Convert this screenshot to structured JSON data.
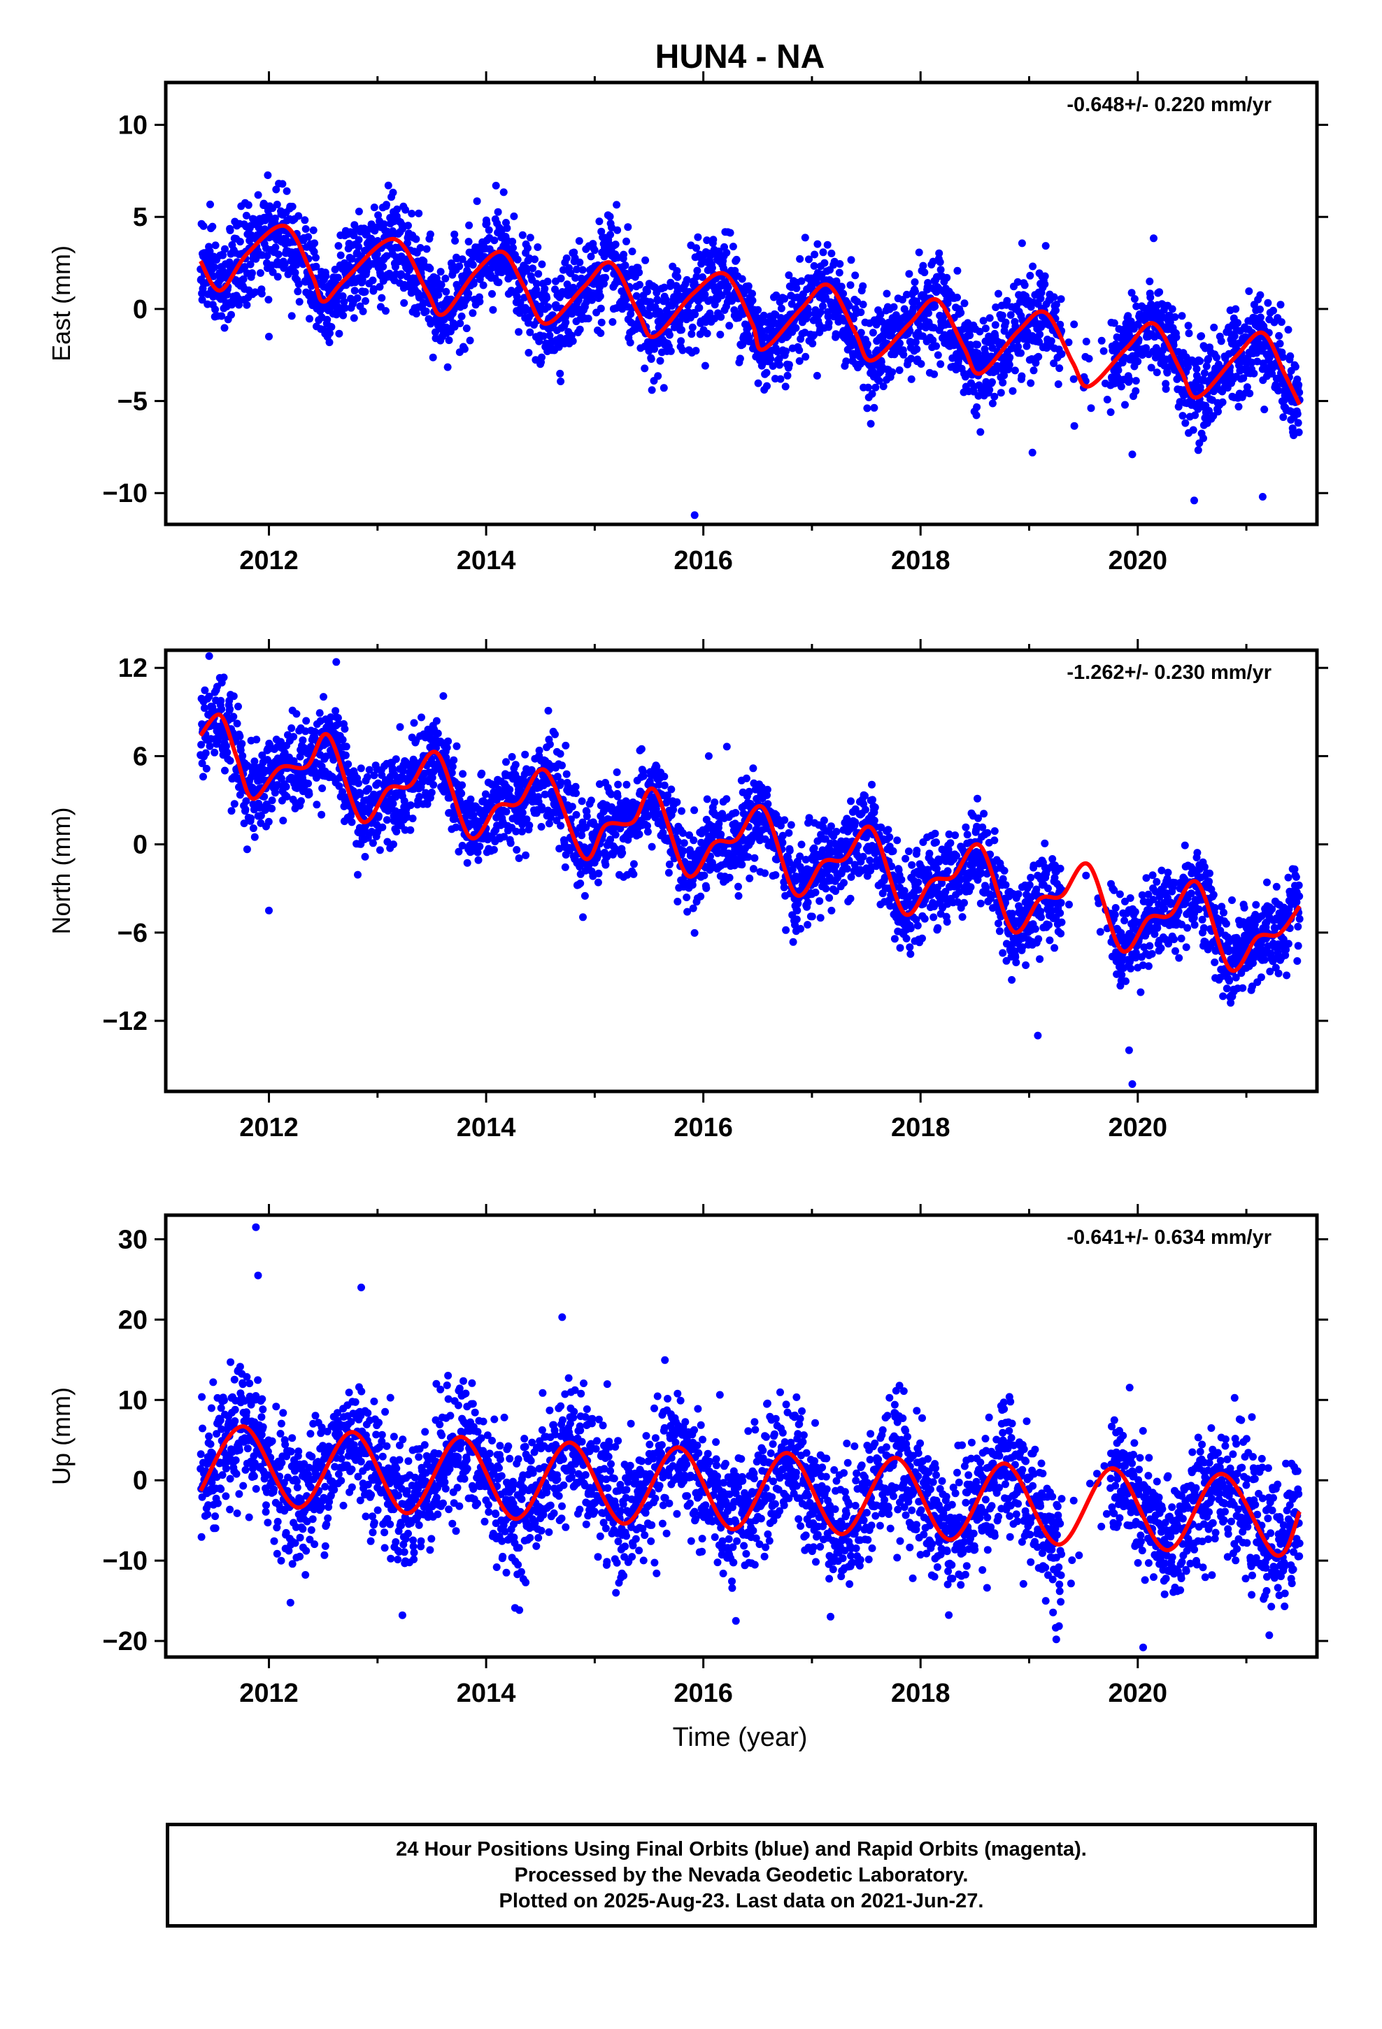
{
  "title": "HUN4 - NA",
  "xlabel": "Time (year)",
  "footer": {
    "line1": "24 Hour Positions Using Final Orbits (blue) and Rapid Orbits (magenta).",
    "line2": "Processed by the Nevada Geodetic Laboratory.",
    "line3": "Plotted on 2025-Aug-23. Last data on 2021-Jun-27."
  },
  "colors": {
    "data_points": "#0000ff",
    "model_fit": "#ff0000",
    "axes": "#000000"
  },
  "chart_data": [
    {
      "type": "scatter",
      "ylabel": "East (mm)",
      "rate_label": "-0.648+/- 0.220 mm/yr",
      "rate_mm_per_yr": -0.648,
      "rate_sigma": 0.22,
      "xlim": [
        2011.05,
        2021.65
      ],
      "ylim": [
        -11.7,
        12.3
      ],
      "xticks": [
        2012,
        2014,
        2016,
        2018,
        2020
      ],
      "yticks": [
        -10,
        -5,
        0,
        5,
        10
      ],
      "series": [
        {
          "kind": "points",
          "x_range": [
            2011.37,
            2021.49
          ],
          "base_at_start_mm": 2.4,
          "annual_amplitude_mm": 1.6,
          "annual_peak_fraction": 0.1,
          "semiannual_amplitude_mm": 0.6,
          "scatter_sigma_mm": 1.3,
          "count": 3300,
          "outliers": [
            [
              2012.0,
              -1.5
            ],
            [
              2015.92,
              -11.2
            ],
            [
              2019.03,
              -7.8
            ],
            [
              2019.95,
              -7.9
            ],
            [
              2020.52,
              -10.4
            ],
            [
              2021.15,
              -10.2
            ]
          ]
        },
        {
          "kind": "fit",
          "x": [
            2011.37,
            2011.55,
            2011.8,
            2012.15,
            2012.4,
            2012.5,
            2012.7,
            2013.15,
            2013.45,
            2013.6,
            2013.9,
            2014.15,
            2014.35,
            2014.55,
            2014.9,
            2015.15,
            2015.4,
            2015.55,
            2015.9,
            2016.2,
            2016.45,
            2016.55,
            2016.9,
            2017.15,
            2017.4,
            2017.55,
            2017.9,
            2018.15,
            2018.4,
            2018.55,
            2018.9,
            2019.15,
            2019.4,
            2019.55,
            2019.9,
            2020.15,
            2020.4,
            2020.55,
            2020.9,
            2021.15,
            2021.35,
            2021.49
          ],
          "y": [
            2.6,
            1.0,
            3.0,
            4.5,
            1.8,
            0.4,
            1.6,
            3.8,
            1.0,
            -0.3,
            2.0,
            3.1,
            1.2,
            -0.8,
            1.2,
            2.5,
            -0.2,
            -1.5,
            0.8,
            1.9,
            -0.8,
            -2.2,
            0.0,
            1.3,
            -1.3,
            -2.8,
            -0.8,
            0.5,
            -2.1,
            -3.5,
            -1.2,
            -0.2,
            -2.9,
            -4.2,
            -2.1,
            -0.8,
            -3.4,
            -4.8,
            -2.6,
            -1.3,
            -3.5,
            -5.2
          ]
        }
      ]
    },
    {
      "type": "scatter",
      "ylabel": "North (mm)",
      "rate_label": "-1.262+/- 0.230 mm/yr",
      "rate_mm_per_yr": -1.262,
      "rate_sigma": 0.23,
      "xlim": [
        2011.05,
        2021.65
      ],
      "ylim": [
        -16.8,
        13.2
      ],
      "xticks": [
        2012,
        2014,
        2016,
        2018,
        2020
      ],
      "yticks": [
        -12,
        -6,
        0,
        6,
        12
      ],
      "series": [
        {
          "kind": "points",
          "x_range": [
            2011.37,
            2021.49
          ],
          "base_at_start_mm": 7.0,
          "annual_amplitude_mm": 2.0,
          "annual_peak_fraction": 0.55,
          "semiannual_amplitude_mm": 0.7,
          "scatter_sigma_mm": 1.5,
          "count": 3300,
          "outliers": [
            [
              2011.45,
              12.8
            ],
            [
              2012.0,
              -4.5
            ],
            [
              2012.62,
              12.4
            ],
            [
              2019.08,
              -13.0
            ],
            [
              2019.95,
              -16.3
            ],
            [
              2019.92,
              -14.0
            ],
            [
              2016.05,
              6.0
            ]
          ]
        },
        {
          "kind": "fit",
          "x": [
            2011.37,
            2011.55,
            2011.7,
            2011.85,
            2012.1,
            2012.35,
            2012.55,
            2012.85,
            2013.1,
            2013.3,
            2013.55,
            2013.85,
            2014.1,
            2014.3,
            2014.55,
            2014.9,
            2015.1,
            2015.35,
            2015.55,
            2015.85,
            2016.1,
            2016.3,
            2016.55,
            2016.85,
            2017.1,
            2017.3,
            2017.55,
            2017.85,
            2018.1,
            2018.3,
            2018.55,
            2018.85,
            2019.1,
            2019.3,
            2019.55,
            2019.85,
            2020.1,
            2020.3,
            2020.55,
            2020.85,
            2021.1,
            2021.3,
            2021.49
          ],
          "y": [
            7.4,
            8.8,
            6.0,
            3.1,
            5.2,
            5.3,
            7.4,
            1.6,
            3.8,
            4.0,
            6.2,
            0.5,
            2.6,
            2.8,
            5.0,
            -0.9,
            1.3,
            1.5,
            3.7,
            -2.1,
            0.1,
            0.3,
            2.5,
            -3.4,
            -1.2,
            -1.0,
            1.1,
            -4.7,
            -2.5,
            -2.2,
            -0.1,
            -5.9,
            -3.7,
            -3.5,
            -1.4,
            -7.2,
            -5.0,
            -4.8,
            -2.6,
            -8.5,
            -6.3,
            -6.1,
            -4.2
          ]
        }
      ]
    },
    {
      "type": "scatter",
      "ylabel": "Up (mm)",
      "rate_label": "-0.641+/- 0.634 mm/yr",
      "rate_mm_per_yr": -0.641,
      "rate_sigma": 0.634,
      "xlim": [
        2011.05,
        2021.65
      ],
      "ylim": [
        -22,
        33
      ],
      "xticks": [
        2012,
        2014,
        2016,
        2018,
        2020
      ],
      "yticks": [
        -20,
        -10,
        0,
        10,
        20,
        30
      ],
      "series": [
        {
          "kind": "points",
          "x_range": [
            2011.37,
            2021.49
          ],
          "base_at_start_mm": 1.7,
          "annual_amplitude_mm": 5.2,
          "annual_peak_fraction": 0.77,
          "semiannual_amplitude_mm": 0.0,
          "scatter_sigma_mm": 4.0,
          "count": 3300,
          "outliers": [
            [
              2011.88,
              31.5
            ],
            [
              2011.9,
              25.5
            ],
            [
              2012.85,
              24.0
            ],
            [
              2014.7,
              20.3
            ],
            [
              2019.25,
              -19.8
            ],
            [
              2020.05,
              -20.8
            ],
            [
              2016.3,
              -17.5
            ]
          ]
        },
        {
          "kind": "fit",
          "x": [
            2011.37,
            2011.77,
            2012.27,
            2012.77,
            2013.27,
            2013.77,
            2014.27,
            2014.77,
            2015.27,
            2015.77,
            2016.27,
            2016.77,
            2017.27,
            2017.77,
            2018.27,
            2018.77,
            2019.27,
            2019.77,
            2020.27,
            2020.77,
            2021.27,
            2021.49
          ],
          "y": [
            -1.3,
            6.7,
            -3.4,
            6.0,
            -4.1,
            5.4,
            -4.8,
            4.7,
            -5.4,
            4.1,
            -6.1,
            3.4,
            -6.7,
            2.8,
            -7.4,
            2.1,
            -8.0,
            1.5,
            -8.7,
            0.8,
            -9.3,
            -3.9
          ]
        }
      ]
    }
  ]
}
